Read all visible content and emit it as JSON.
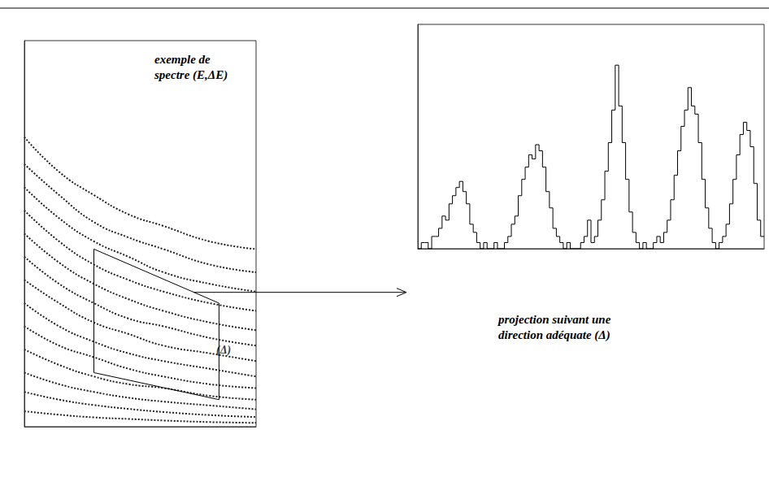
{
  "chart_data": [
    {
      "type": "line",
      "title": "exemple de spectre (E,ΔE)",
      "xlim": [
        0,
        100
      ],
      "ylim": [
        0,
        100
      ],
      "tick_labels": false,
      "line_style": "dotted",
      "color": "#222222",
      "x": [
        0,
        15,
        30,
        45,
        60,
        80,
        100
      ],
      "series": [
        {
          "values": [
            75,
            66,
            60,
            55,
            52,
            48,
            46
          ]
        },
        {
          "values": [
            68,
            60,
            53,
            49,
            46,
            42,
            40
          ]
        },
        {
          "values": [
            62,
            54,
            48,
            44,
            40,
            37,
            35
          ]
        },
        {
          "values": [
            56,
            48,
            42,
            38,
            35,
            32,
            30
          ]
        },
        {
          "values": [
            50,
            42.5,
            37,
            33,
            30,
            27,
            25
          ]
        },
        {
          "values": [
            44,
            37,
            32,
            28,
            26,
            23,
            21
          ]
        },
        {
          "values": [
            38,
            32,
            27,
            24,
            21,
            19,
            17
          ]
        },
        {
          "values": [
            32,
            26,
            22,
            19,
            17,
            15,
            13
          ]
        },
        {
          "values": [
            26,
            21,
            18,
            15,
            13,
            11,
            10
          ]
        },
        {
          "values": [
            20,
            16,
            13,
            11,
            10,
            8,
            7
          ]
        },
        {
          "values": [
            14,
            11,
            9,
            7.5,
            6.5,
            5.5,
            4.5
          ]
        },
        {
          "values": [
            9,
            7,
            5.6,
            4.6,
            3.8,
            3,
            2.5
          ]
        },
        {
          "values": [
            4,
            3.1,
            2.4,
            2,
            1.6,
            1.2,
            1
          ]
        }
      ],
      "selection_box": {
        "x": [
          30,
          84,
          84,
          30
        ],
        "y": [
          46,
          32,
          7,
          14
        ]
      },
      "annotations": [
        {
          "text": "(Δ)",
          "x": 86,
          "y": 20
        }
      ]
    },
    {
      "type": "histogram",
      "title": "projection suivant une direction adéquate (Δ)",
      "xlim": [
        0,
        100
      ],
      "ylim": [
        0,
        110
      ],
      "tick_labels": false,
      "color": "#000000",
      "bins": [
        0,
        1,
        2,
        3,
        4,
        5,
        6,
        7,
        8,
        9,
        10,
        11,
        12,
        13,
        14,
        15,
        16,
        17,
        18,
        19,
        20,
        21,
        22,
        23,
        24,
        25,
        26,
        27,
        28,
        29,
        30,
        31,
        32,
        33,
        34,
        35,
        36,
        37,
        38,
        39,
        40,
        41,
        42,
        43,
        44,
        45,
        46,
        47,
        48,
        49,
        50,
        51,
        52,
        53,
        54,
        55,
        56,
        57,
        58,
        59,
        60,
        61,
        62,
        63,
        64,
        65,
        66,
        67,
        68,
        69,
        70,
        71,
        72,
        73,
        74,
        75,
        76,
        77,
        78,
        79,
        80,
        81,
        82,
        83,
        84,
        85,
        86,
        87,
        88,
        89,
        90,
        91,
        92,
        93,
        94,
        95,
        96,
        97,
        98,
        99,
        100
      ],
      "counts": [
        0,
        3,
        3,
        0,
        6,
        6,
        10,
        16,
        14,
        22,
        26,
        30,
        33,
        28,
        22,
        12,
        8,
        3,
        0,
        3,
        0,
        0,
        3,
        0,
        0,
        3,
        6,
        12,
        16,
        26,
        34,
        40,
        46,
        44,
        51,
        48,
        40,
        28,
        20,
        10,
        6,
        3,
        0,
        3,
        0,
        0,
        0,
        3,
        6,
        14,
        3,
        6,
        14,
        24,
        38,
        52,
        68,
        90,
        70,
        52,
        34,
        18,
        8,
        3,
        0,
        3,
        0,
        0,
        3,
        6,
        3,
        8,
        14,
        24,
        36,
        48,
        60,
        68,
        79,
        70,
        66,
        52,
        34,
        20,
        10,
        3,
        0,
        3,
        6,
        12,
        22,
        34,
        46,
        56,
        62,
        58,
        50,
        32,
        14,
        6
      ]
    }
  ]
}
